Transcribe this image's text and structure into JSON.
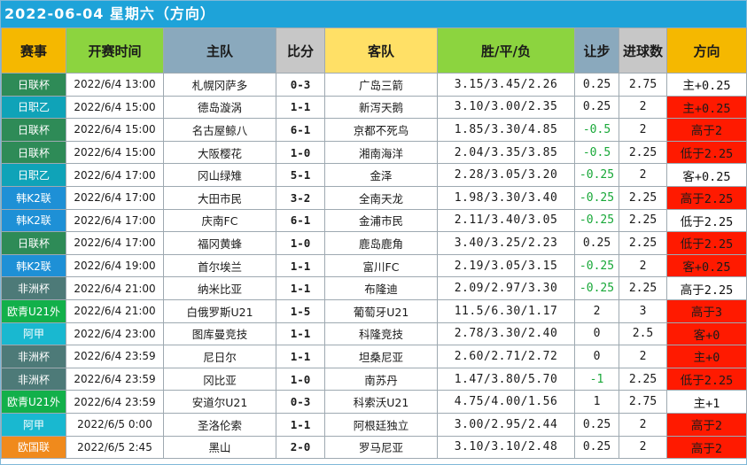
{
  "title": "2022-06-04 星期六（方向）",
  "headers": {
    "league": "赛事",
    "time": "开赛时间",
    "home": "主队",
    "score": "比分",
    "away": "客队",
    "odds": "胜/平/负",
    "handicap": "让步",
    "goals": "进球数",
    "direction": "方向"
  },
  "colors": {
    "日联杯": "#2e8b57",
    "日职乙": "#0fa3b8",
    "韩K2联": "#1e90d6",
    "非洲杯": "#4d7a78",
    "欧青U21外": "#12b04a",
    "阿甲": "#19b8d0",
    "欧国联": "#f08a1c",
    "direction_red": "#ff1a00",
    "handicap_negative": "#18a838"
  },
  "rows": [
    {
      "league": "日联杯",
      "time": "2022/6/4 13:00",
      "home": "札幌冈萨多",
      "score": "0-3",
      "away": "广岛三箭",
      "odds": "3.15/3.45/2.26",
      "handicap": "0.25",
      "goals": "2.75",
      "direction": "主+0.25",
      "dir_color": "white"
    },
    {
      "league": "日职乙",
      "time": "2022/6/4 15:00",
      "home": "德岛漩涡",
      "score": "1-1",
      "away": "新泻天鹅",
      "odds": "3.10/3.00/2.35",
      "handicap": "0.25",
      "goals": "2",
      "direction": "主+0.25",
      "dir_color": "red"
    },
    {
      "league": "日联杯",
      "time": "2022/6/4 15:00",
      "home": "名古屋鲸八",
      "score": "6-1",
      "away": "京都不死鸟",
      "odds": "1.85/3.30/4.85",
      "handicap": "-0.5",
      "goals": "2",
      "direction": "高于2",
      "dir_color": "red"
    },
    {
      "league": "日联杯",
      "time": "2022/6/4 15:00",
      "home": "大阪樱花",
      "score": "1-0",
      "away": "湘南海洋",
      "odds": "2.04/3.35/3.85",
      "handicap": "-0.5",
      "goals": "2.25",
      "direction": "低于2.25",
      "dir_color": "red"
    },
    {
      "league": "日职乙",
      "time": "2022/6/4 17:00",
      "home": "冈山绿雉",
      "score": "5-1",
      "away": "金泽",
      "odds": "2.28/3.05/3.20",
      "handicap": "-0.25",
      "goals": "2",
      "direction": "客+0.25",
      "dir_color": "white"
    },
    {
      "league": "韩K2联",
      "time": "2022/6/4 17:00",
      "home": "大田市民",
      "score": "3-2",
      "away": "全南天龙",
      "odds": "1.98/3.30/3.40",
      "handicap": "-0.25",
      "goals": "2.25",
      "direction": "高于2.25",
      "dir_color": "red"
    },
    {
      "league": "韩K2联",
      "time": "2022/6/4 17:00",
      "home": "庆南FC",
      "score": "6-1",
      "away": "金浦市民",
      "odds": "2.11/3.40/3.05",
      "handicap": "-0.25",
      "goals": "2.25",
      "direction": "低于2.25",
      "dir_color": "white"
    },
    {
      "league": "日联杯",
      "time": "2022/6/4 17:00",
      "home": "福冈黄蜂",
      "score": "1-0",
      "away": "鹿岛鹿角",
      "odds": "3.40/3.25/2.23",
      "handicap": "0.25",
      "goals": "2.25",
      "direction": "低于2.25",
      "dir_color": "red"
    },
    {
      "league": "韩K2联",
      "time": "2022/6/4 19:00",
      "home": "首尔埃兰",
      "score": "1-1",
      "away": "富川FC",
      "odds": "2.19/3.05/3.15",
      "handicap": "-0.25",
      "goals": "2",
      "direction": "客+0.25",
      "dir_color": "red"
    },
    {
      "league": "非洲杯",
      "time": "2022/6/4 21:00",
      "home": "纳米比亚",
      "score": "1-1",
      "away": "布隆迪",
      "odds": "2.09/2.97/3.30",
      "handicap": "-0.25",
      "goals": "2.25",
      "direction": "高于2.25",
      "dir_color": "white"
    },
    {
      "league": "欧青U21外",
      "time": "2022/6/4 21:00",
      "home": "白俄罗斯U21",
      "score": "1-5",
      "away": "葡萄牙U21",
      "odds": "11.5/6.30/1.17",
      "handicap": "2",
      "goals": "3",
      "direction": "高于3",
      "dir_color": "red"
    },
    {
      "league": "阿甲",
      "time": "2022/6/4 23:00",
      "home": "图库曼竞技",
      "score": "1-1",
      "away": "科隆竞技",
      "odds": "2.78/3.30/2.40",
      "handicap": "0",
      "goals": "2.5",
      "direction": "客+0",
      "dir_color": "red"
    },
    {
      "league": "非洲杯",
      "time": "2022/6/4 23:59",
      "home": "尼日尔",
      "score": "1-1",
      "away": "坦桑尼亚",
      "odds": "2.60/2.71/2.72",
      "handicap": "0",
      "goals": "2",
      "direction": "主+0",
      "dir_color": "red"
    },
    {
      "league": "非洲杯",
      "time": "2022/6/4 23:59",
      "home": "冈比亚",
      "score": "1-0",
      "away": "南苏丹",
      "odds": "1.47/3.80/5.70",
      "handicap": "-1",
      "goals": "2.25",
      "direction": "低于2.25",
      "dir_color": "red"
    },
    {
      "league": "欧青U21外",
      "time": "2022/6/4 23:59",
      "home": "安道尔U21",
      "score": "0-3",
      "away": "科索沃U21",
      "odds": "4.75/4.00/1.56",
      "handicap": "1",
      "goals": "2.75",
      "direction": "主+1",
      "dir_color": "white"
    },
    {
      "league": "阿甲",
      "time": "2022/6/5 0:00",
      "home": "圣洛伦索",
      "score": "1-1",
      "away": "阿根廷独立",
      "odds": "3.00/2.95/2.44",
      "handicap": "0.25",
      "goals": "2",
      "direction": "高于2",
      "dir_color": "red"
    },
    {
      "league": "欧国联",
      "time": "2022/6/5 2:45",
      "home": "黑山",
      "score": "2-0",
      "away": "罗马尼亚",
      "odds": "3.10/3.10/2.48",
      "handicap": "0.25",
      "goals": "2",
      "direction": "高于2",
      "dir_color": "red"
    }
  ]
}
